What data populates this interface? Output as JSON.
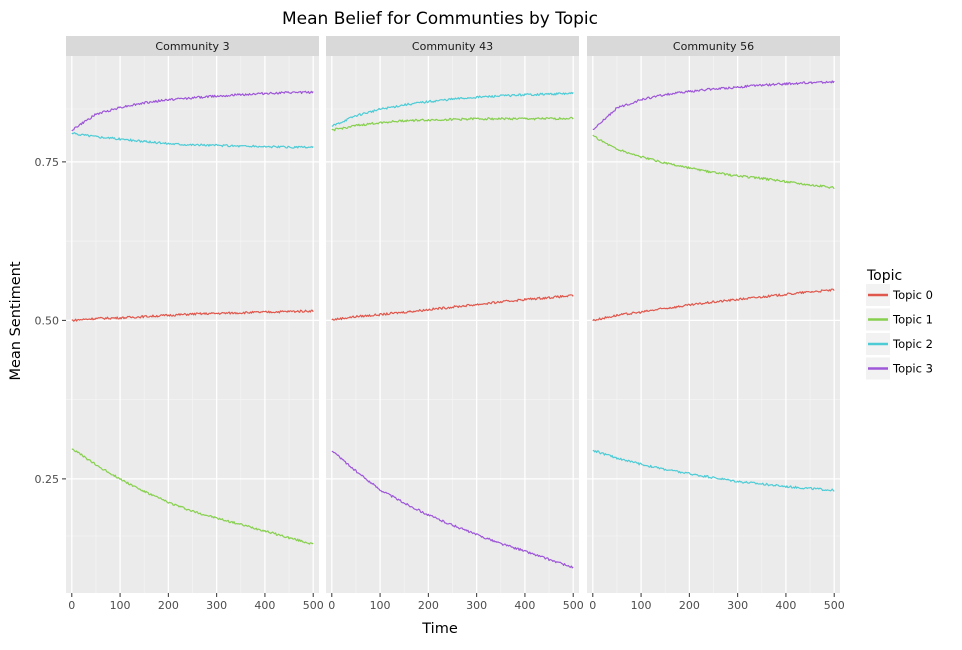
{
  "chart_data": {
    "type": "line",
    "title": "Mean Belief for Communties by Topic",
    "xlabel": "Time",
    "ylabel": "Mean Sentiment",
    "xlim": [
      -12,
      512
    ],
    "ylim": [
      0.07,
      0.917
    ],
    "x_ticks": [
      0,
      100,
      200,
      300,
      400,
      500
    ],
    "y_ticks": [
      0.25,
      0.5,
      0.75
    ],
    "y_tick_labels": [
      "0.25",
      "0.50",
      "0.75"
    ],
    "grid": true,
    "legend": {
      "title": "Topic",
      "position": "right",
      "entries": [
        "Topic 0",
        "Topic 1",
        "Topic 2",
        "Topic 3"
      ]
    },
    "colors": {
      "Topic 0": "#E0584D",
      "Topic 1": "#87D04E",
      "Topic 2": "#4DCCD6",
      "Topic 3": "#9E57D8"
    },
    "panels": [
      {
        "name": "Community 3",
        "series": [
          {
            "name": "Topic 0",
            "x": [
              0,
              50,
              100,
              150,
              200,
              250,
              300,
              350,
              400,
              450,
              500
            ],
            "values": [
              0.5,
              0.503,
              0.504,
              0.506,
              0.508,
              0.51,
              0.511,
              0.512,
              0.513,
              0.514,
              0.515
            ]
          },
          {
            "name": "Topic 1",
            "x": [
              0,
              50,
              100,
              150,
              200,
              250,
              300,
              350,
              400,
              450,
              500
            ],
            "values": [
              0.298,
              0.272,
              0.25,
              0.23,
              0.213,
              0.199,
              0.188,
              0.178,
              0.168,
              0.157,
              0.147
            ]
          },
          {
            "name": "Topic 2",
            "x": [
              0,
              50,
              100,
              150,
              200,
              250,
              300,
              350,
              400,
              450,
              500
            ],
            "values": [
              0.795,
              0.79,
              0.786,
              0.782,
              0.779,
              0.777,
              0.776,
              0.775,
              0.774,
              0.773,
              0.773
            ]
          },
          {
            "name": "Topic 3",
            "x": [
              0,
              50,
              100,
              150,
              200,
              250,
              300,
              350,
              400,
              450,
              500
            ],
            "values": [
              0.8,
              0.825,
              0.836,
              0.843,
              0.848,
              0.851,
              0.854,
              0.856,
              0.858,
              0.859,
              0.86
            ]
          }
        ]
      },
      {
        "name": "Community 43",
        "series": [
          {
            "name": "Topic 0",
            "x": [
              0,
              50,
              100,
              150,
              200,
              250,
              300,
              350,
              400,
              450,
              500
            ],
            "values": [
              0.501,
              0.506,
              0.509,
              0.513,
              0.517,
              0.521,
              0.525,
              0.529,
              0.533,
              0.536,
              0.539
            ]
          },
          {
            "name": "Topic 1",
            "x": [
              0,
              50,
              100,
              150,
              200,
              250,
              300,
              350,
              400,
              450,
              500
            ],
            "values": [
              0.8,
              0.807,
              0.812,
              0.815,
              0.816,
              0.817,
              0.818,
              0.818,
              0.818,
              0.818,
              0.819
            ]
          },
          {
            "name": "Topic 2",
            "x": [
              0,
              50,
              100,
              150,
              200,
              250,
              300,
              350,
              400,
              450,
              500
            ],
            "values": [
              0.806,
              0.823,
              0.833,
              0.84,
              0.845,
              0.849,
              0.852,
              0.854,
              0.856,
              0.857,
              0.858
            ]
          },
          {
            "name": "Topic 3",
            "x": [
              0,
              50,
              100,
              150,
              200,
              250,
              300,
              350,
              400,
              450,
              500
            ],
            "values": [
              0.295,
              0.262,
              0.233,
              0.212,
              0.193,
              0.177,
              0.162,
              0.148,
              0.136,
              0.123,
              0.11
            ]
          }
        ]
      },
      {
        "name": "Community 56",
        "series": [
          {
            "name": "Topic 0",
            "x": [
              0,
              50,
              100,
              150,
              200,
              250,
              300,
              350,
              400,
              450,
              500
            ],
            "values": [
              0.5,
              0.508,
              0.513,
              0.519,
              0.524,
              0.529,
              0.533,
              0.537,
              0.541,
              0.545,
              0.548
            ]
          },
          {
            "name": "Topic 1",
            "x": [
              0,
              50,
              100,
              150,
              200,
              250,
              300,
              350,
              400,
              450,
              500
            ],
            "values": [
              0.791,
              0.77,
              0.758,
              0.748,
              0.74,
              0.733,
              0.728,
              0.724,
              0.719,
              0.714,
              0.709
            ]
          },
          {
            "name": "Topic 2",
            "x": [
              0,
              50,
              100,
              150,
              200,
              250,
              300,
              350,
              400,
              450,
              500
            ],
            "values": [
              0.295,
              0.283,
              0.273,
              0.265,
              0.258,
              0.252,
              0.246,
              0.242,
              0.238,
              0.235,
              0.232
            ]
          },
          {
            "name": "Topic 3",
            "x": [
              0,
              50,
              100,
              150,
              200,
              250,
              300,
              350,
              400,
              450,
              500
            ],
            "values": [
              0.8,
              0.835,
              0.848,
              0.856,
              0.861,
              0.865,
              0.868,
              0.871,
              0.873,
              0.875,
              0.876
            ]
          }
        ]
      }
    ]
  }
}
